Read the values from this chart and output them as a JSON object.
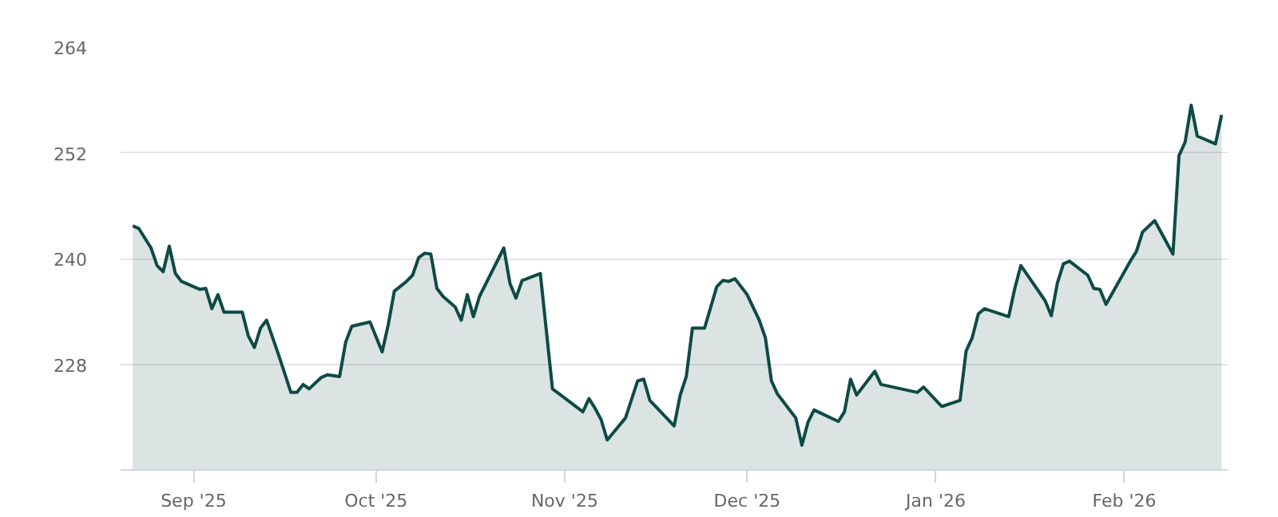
{
  "chart_data": {
    "type": "area",
    "x": [
      "2025-08-22",
      "2025-08-23",
      "2025-08-25",
      "2025-08-26",
      "2025-08-27",
      "2025-08-28",
      "2025-08-29",
      "2025-08-30",
      "2025-09-02",
      "2025-09-03",
      "2025-09-04",
      "2025-09-05",
      "2025-09-06",
      "2025-09-09",
      "2025-09-10",
      "2025-09-11",
      "2025-09-12",
      "2025-09-13",
      "2025-09-15",
      "2025-09-17",
      "2025-09-18",
      "2025-09-19",
      "2025-09-20",
      "2025-09-22",
      "2025-09-23",
      "2025-09-25",
      "2025-09-26",
      "2025-09-27",
      "2025-09-30",
      "2025-10-02",
      "2025-10-03",
      "2025-10-04",
      "2025-10-06",
      "2025-10-07",
      "2025-10-08",
      "2025-10-09",
      "2025-10-10",
      "2025-10-11",
      "2025-10-12",
      "2025-10-14",
      "2025-10-15",
      "2025-10-16",
      "2025-10-17",
      "2025-10-18",
      "2025-10-22",
      "2025-10-23",
      "2025-10-24",
      "2025-10-25",
      "2025-10-28",
      "2025-10-30",
      "2025-11-04",
      "2025-11-05",
      "2025-11-06",
      "2025-11-07",
      "2025-11-08",
      "2025-11-11",
      "2025-11-13",
      "2025-11-14",
      "2025-11-15",
      "2025-11-19",
      "2025-11-20",
      "2025-11-21",
      "2025-11-22",
      "2025-11-24",
      "2025-11-26",
      "2025-11-27",
      "2025-11-28",
      "2025-11-29",
      "2025-12-01",
      "2025-12-03",
      "2025-12-04",
      "2025-12-05",
      "2025-12-06",
      "2025-12-08",
      "2025-12-09",
      "2025-12-10",
      "2025-12-11",
      "2025-12-12",
      "2025-12-16",
      "2025-12-17",
      "2025-12-18",
      "2025-12-19",
      "2025-12-22",
      "2025-12-23",
      "2025-12-29",
      "2025-12-30",
      "2026-01-02",
      "2026-01-05",
      "2026-01-06",
      "2026-01-07",
      "2026-01-08",
      "2026-01-09",
      "2026-01-13",
      "2026-01-14",
      "2026-01-15",
      "2026-01-19",
      "2026-01-20",
      "2026-01-21",
      "2026-01-22",
      "2026-01-23",
      "2026-01-26",
      "2026-01-27",
      "2026-01-28",
      "2026-01-29",
      "2026-02-02",
      "2026-02-03",
      "2026-02-04",
      "2026-02-06",
      "2026-02-09",
      "2026-02-10",
      "2026-02-11",
      "2026-02-12",
      "2026-02-13",
      "2026-02-16",
      "2026-02-17"
    ],
    "series": [
      {
        "color": "#0f4a45",
        "values": [
          243.7,
          243.4,
          241.2,
          239.2,
          238.5,
          241.4,
          238.3,
          237.4,
          236.5,
          236.6,
          234.3,
          235.9,
          233.9,
          233.9,
          231.2,
          229.9,
          232.1,
          233.0,
          229.0,
          224.8,
          224.8,
          225.7,
          225.2,
          226.5,
          226.8,
          226.6,
          230.5,
          232.3,
          232.8,
          229.4,
          232.5,
          236.3,
          237.4,
          238.1,
          240.1,
          240.6,
          240.5,
          236.6,
          235.7,
          234.5,
          233.0,
          235.9,
          233.4,
          235.7,
          241.2,
          237.2,
          235.5,
          237.5,
          238.3,
          225.2,
          222.6,
          224.1,
          223.0,
          221.7,
          219.4,
          221.9,
          226.1,
          226.3,
          223.9,
          221.0,
          224.5,
          226.6,
          232.1,
          232.1,
          236.8,
          237.5,
          237.4,
          237.7,
          235.9,
          233.0,
          231.0,
          226.1,
          224.6,
          222.8,
          221.9,
          218.8,
          221.4,
          222.8,
          221.5,
          222.6,
          226.3,
          224.5,
          227.2,
          225.7,
          224.8,
          225.4,
          223.2,
          223.9,
          229.5,
          231.0,
          233.7,
          234.3,
          233.4,
          236.6,
          239.2,
          235.2,
          233.5,
          237.2,
          239.4,
          239.7,
          238.1,
          236.6,
          236.5,
          234.8,
          239.7,
          240.8,
          243.0,
          244.3,
          240.5,
          251.7,
          253.2,
          257.4,
          253.9,
          253.0,
          256.3
        ]
      }
    ],
    "xlim": [
      "2025-08-20",
      "2026-02-18"
    ],
    "xticks": [
      {
        "value": "2025-09-01",
        "label": "Sep '25"
      },
      {
        "value": "2025-10-01",
        "label": "Oct '25"
      },
      {
        "value": "2025-11-01",
        "label": "Nov '25"
      },
      {
        "value": "2025-12-01",
        "label": "Dec '25"
      },
      {
        "value": "2026-01-01",
        "label": "Jan '26"
      },
      {
        "value": "2026-02-01",
        "label": "Feb '26"
      }
    ],
    "ylim": [
      216,
      264
    ],
    "yticks": [
      228,
      240,
      252,
      264
    ],
    "grid": "y"
  }
}
